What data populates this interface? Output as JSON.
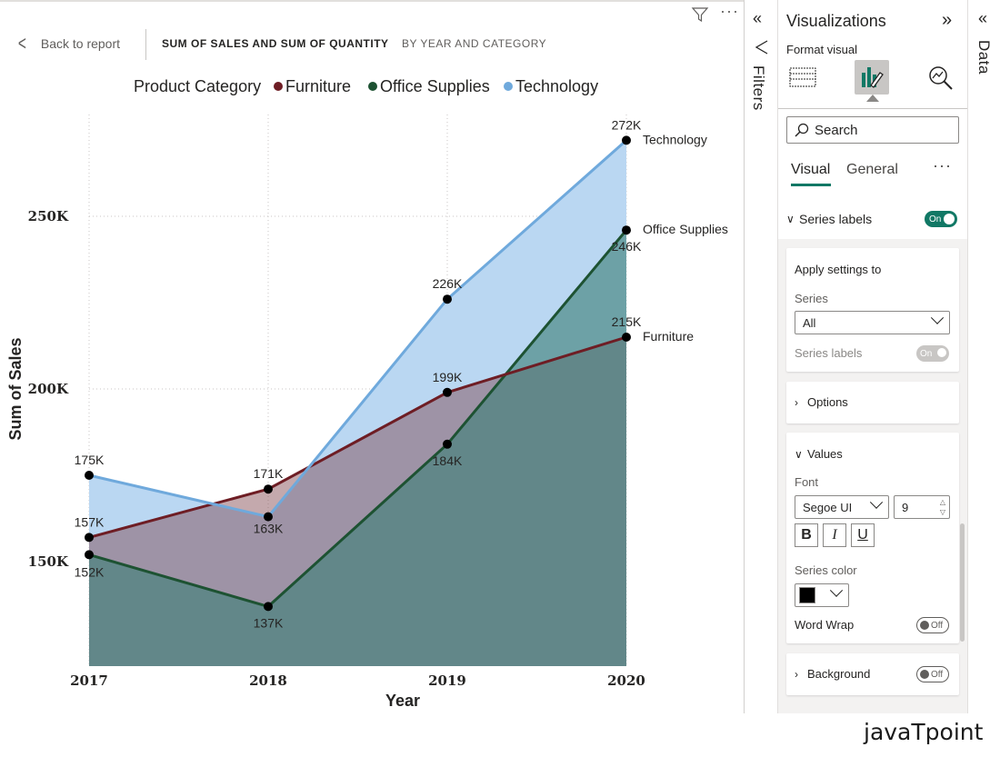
{
  "header": {
    "back_label": "Back to report",
    "title": "SUM OF SALES AND SUM OF QUANTITY",
    "subtitle": "BY YEAR AND CATEGORY",
    "more": "···"
  },
  "icons": {
    "back": "chevron-left-icon",
    "filter": "funnel-icon",
    "more": "more-options-icon",
    "collapse": "double-chevron-left-icon",
    "expand": "double-chevron-right-icon",
    "search": "search-icon"
  },
  "colors": {
    "furniture": "#6e1d24",
    "office_supplies": "#1d5232",
    "technology": "#6fa9dc",
    "accent": "#117865"
  },
  "chart_data": {
    "type": "area",
    "title": "",
    "legend_title": "Product Category",
    "legend_position": "top",
    "xlabel": "Year",
    "ylabel": "Sum of Sales",
    "x": [
      "2017",
      "2018",
      "2019",
      "2020"
    ],
    "ylim": [
      120000,
      280000
    ],
    "yticks": [
      150000,
      200000,
      250000
    ],
    "ytick_labels": [
      "150K",
      "200K",
      "250K"
    ],
    "grid": true,
    "series": [
      {
        "name": "Furniture",
        "color": "#6e1d24",
        "values": [
          157000,
          171000,
          199000,
          215000
        ],
        "labels": [
          "157K",
          "171K",
          "199K",
          "215K"
        ]
      },
      {
        "name": "Office Supplies",
        "color": "#1d5232",
        "values": [
          152000,
          137000,
          184000,
          246000
        ],
        "labels": [
          "152K",
          "137K",
          "184K",
          "246K"
        ]
      },
      {
        "name": "Technology",
        "color": "#6fa9dc",
        "values": [
          175000,
          163000,
          226000,
          272000
        ],
        "labels": [
          "175K",
          "163K",
          "226K",
          "272K"
        ]
      }
    ]
  },
  "filters_pane": {
    "label": "Filters"
  },
  "data_pane": {
    "label": "Data"
  },
  "viz_pane": {
    "title": "Visualizations",
    "format_label": "Format visual",
    "search_placeholder": "Search",
    "tabs": {
      "visual": "Visual",
      "general": "General",
      "more": "···"
    },
    "series_labels": {
      "label": "Series labels",
      "toggle": "On"
    },
    "apply": {
      "heading": "Apply settings to",
      "series_label": "Series",
      "series_value": "All",
      "series_labels_label": "Series labels",
      "series_labels_toggle": "On"
    },
    "options": {
      "label": "Options"
    },
    "values": {
      "label": "Values",
      "font_label": "Font",
      "font_value": "Segoe UI",
      "font_size": "9",
      "bold": "B",
      "italic": "I",
      "underline": "U",
      "series_color_label": "Series color",
      "series_color_value": "#000000",
      "word_wrap_label": "Word Wrap",
      "word_wrap_toggle": "Off"
    },
    "background": {
      "label": "Background",
      "toggle": "Off"
    }
  },
  "watermark": "javaTpoint"
}
